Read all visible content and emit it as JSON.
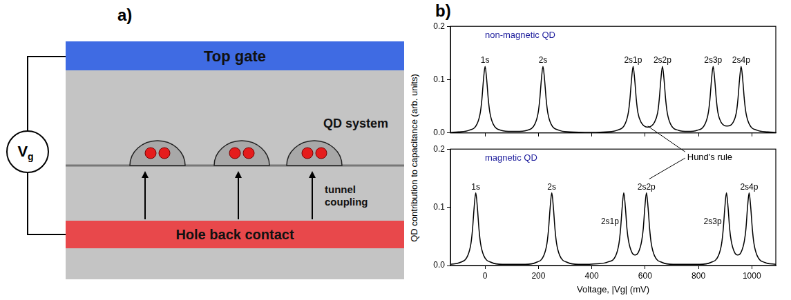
{
  "diagram": {
    "letter": "a)",
    "top_gate": "Top gate",
    "system_label": "QD system",
    "tunnel_label": "tunnel coupling",
    "back_contact": "Hole back contact",
    "source_label": "Vg"
  },
  "chart_panel": {
    "letter": "b)",
    "ylabel": "QD contribution to capacitance (arb. units)",
    "xlabel": "Voltage, |Vg| (mV)",
    "annotation": {
      "text": "Hund's rule",
      "x": [
        610,
        605
      ]
    }
  },
  "chart_data": [
    {
      "type": "line",
      "title": "non-magnetic QD",
      "color": "#000000",
      "x": [
        -130,
        -100,
        -60,
        -30,
        -18,
        -12,
        -6,
        0,
        6,
        12,
        18,
        30,
        60,
        100,
        117,
        157,
        187,
        199,
        205,
        211,
        217,
        223,
        229,
        235,
        247,
        277,
        317,
        400,
        455,
        495,
        525,
        537,
        543,
        549,
        555,
        561,
        567,
        573,
        585,
        610,
        635,
        647,
        653,
        659,
        665,
        671,
        677,
        683,
        695,
        725,
        760,
        795,
        825,
        837,
        843,
        849,
        855,
        861,
        867,
        873,
        885,
        907,
        930,
        942,
        948,
        954,
        960,
        966,
        972,
        978,
        990,
        1020,
        1060,
        1090
      ],
      "values": [
        0.001,
        0.002,
        0.005,
        0.017,
        0.038,
        0.063,
        0.1,
        0.125,
        0.1,
        0.063,
        0.038,
        0.017,
        0.005,
        0.003,
        0.003,
        0.005,
        0.017,
        0.038,
        0.063,
        0.1,
        0.125,
        0.1,
        0.063,
        0.038,
        0.017,
        0.005,
        0.002,
        0.001,
        0.002,
        0.005,
        0.017,
        0.038,
        0.063,
        0.1,
        0.125,
        0.1,
        0.063,
        0.038,
        0.02,
        0.011,
        0.02,
        0.038,
        0.063,
        0.1,
        0.125,
        0.1,
        0.063,
        0.038,
        0.017,
        0.005,
        0.003,
        0.005,
        0.017,
        0.038,
        0.063,
        0.1,
        0.125,
        0.1,
        0.063,
        0.038,
        0.02,
        0.013,
        0.02,
        0.038,
        0.063,
        0.1,
        0.125,
        0.1,
        0.063,
        0.038,
        0.017,
        0.005,
        0.002,
        0.001
      ],
      "peaks": [
        {
          "x": 0,
          "label": "1s"
        },
        {
          "x": 217,
          "label": "2s"
        },
        {
          "x": 555,
          "label": "2s1p"
        },
        {
          "x": 665,
          "label": "2s2p"
        },
        {
          "x": 855,
          "label": "2s3p"
        },
        {
          "x": 960,
          "label": "2s4p"
        }
      ],
      "xlim": [
        -130,
        1090
      ],
      "ylim": [
        0,
        0.2
      ],
      "xticks": [
        0,
        200,
        400,
        600,
        800,
        1000
      ],
      "yticks": [
        {
          "value": 0,
          "label": "0.0"
        },
        {
          "value": 0.1,
          "label": "0.1"
        },
        {
          "value": 0.2,
          "label": "0.2"
        }
      ],
      "grid": false,
      "tick_labels": "y"
    },
    {
      "type": "line",
      "title": "magnetic QD",
      "color": "#000000",
      "x": [
        -130,
        -95,
        -65,
        -53,
        -47,
        -41,
        -35,
        -29,
        -23,
        -17,
        -5,
        25,
        65,
        150,
        190,
        220,
        232,
        238,
        244,
        250,
        256,
        262,
        268,
        280,
        310,
        350,
        420,
        460,
        490,
        502,
        508,
        514,
        520,
        526,
        532,
        538,
        550,
        562,
        575,
        587,
        593,
        599,
        605,
        611,
        617,
        623,
        635,
        665,
        705,
        805,
        845,
        875,
        887,
        893,
        899,
        905,
        911,
        917,
        923,
        935,
        947,
        960,
        972,
        978,
        984,
        990,
        996,
        1002,
        1008,
        1020,
        1050,
        1090
      ],
      "values": [
        0.002,
        0.005,
        0.017,
        0.038,
        0.063,
        0.1,
        0.125,
        0.1,
        0.063,
        0.038,
        0.017,
        0.005,
        0.002,
        0.002,
        0.005,
        0.017,
        0.038,
        0.063,
        0.1,
        0.125,
        0.1,
        0.063,
        0.038,
        0.017,
        0.005,
        0.002,
        0.003,
        0.006,
        0.017,
        0.038,
        0.063,
        0.1,
        0.125,
        0.1,
        0.063,
        0.042,
        0.023,
        0.018,
        0.023,
        0.042,
        0.063,
        0.1,
        0.125,
        0.1,
        0.063,
        0.038,
        0.017,
        0.005,
        0.002,
        0.002,
        0.005,
        0.017,
        0.038,
        0.063,
        0.1,
        0.125,
        0.1,
        0.063,
        0.042,
        0.023,
        0.018,
        0.023,
        0.042,
        0.063,
        0.1,
        0.125,
        0.1,
        0.063,
        0.038,
        0.017,
        0.005,
        0.002
      ],
      "peaks": [
        {
          "x": -35,
          "label": "1s"
        },
        {
          "x": 250,
          "label": "2s"
        },
        {
          "x": 520,
          "label": "2s1p"
        },
        {
          "x": 605,
          "label": "2s2p"
        },
        {
          "x": 905,
          "label": "2s3p"
        },
        {
          "x": 990,
          "label": "2s4p"
        }
      ],
      "xlim": [
        -130,
        1090
      ],
      "ylim": [
        0,
        0.2
      ],
      "xticks": [
        0,
        200,
        400,
        600,
        800,
        1000
      ],
      "yticks": [
        {
          "value": 0,
          "label": "0.0"
        },
        {
          "value": 0.1,
          "label": "0.1"
        },
        {
          "value": 0.2,
          "label": "0.2"
        }
      ],
      "grid": false
    }
  ]
}
